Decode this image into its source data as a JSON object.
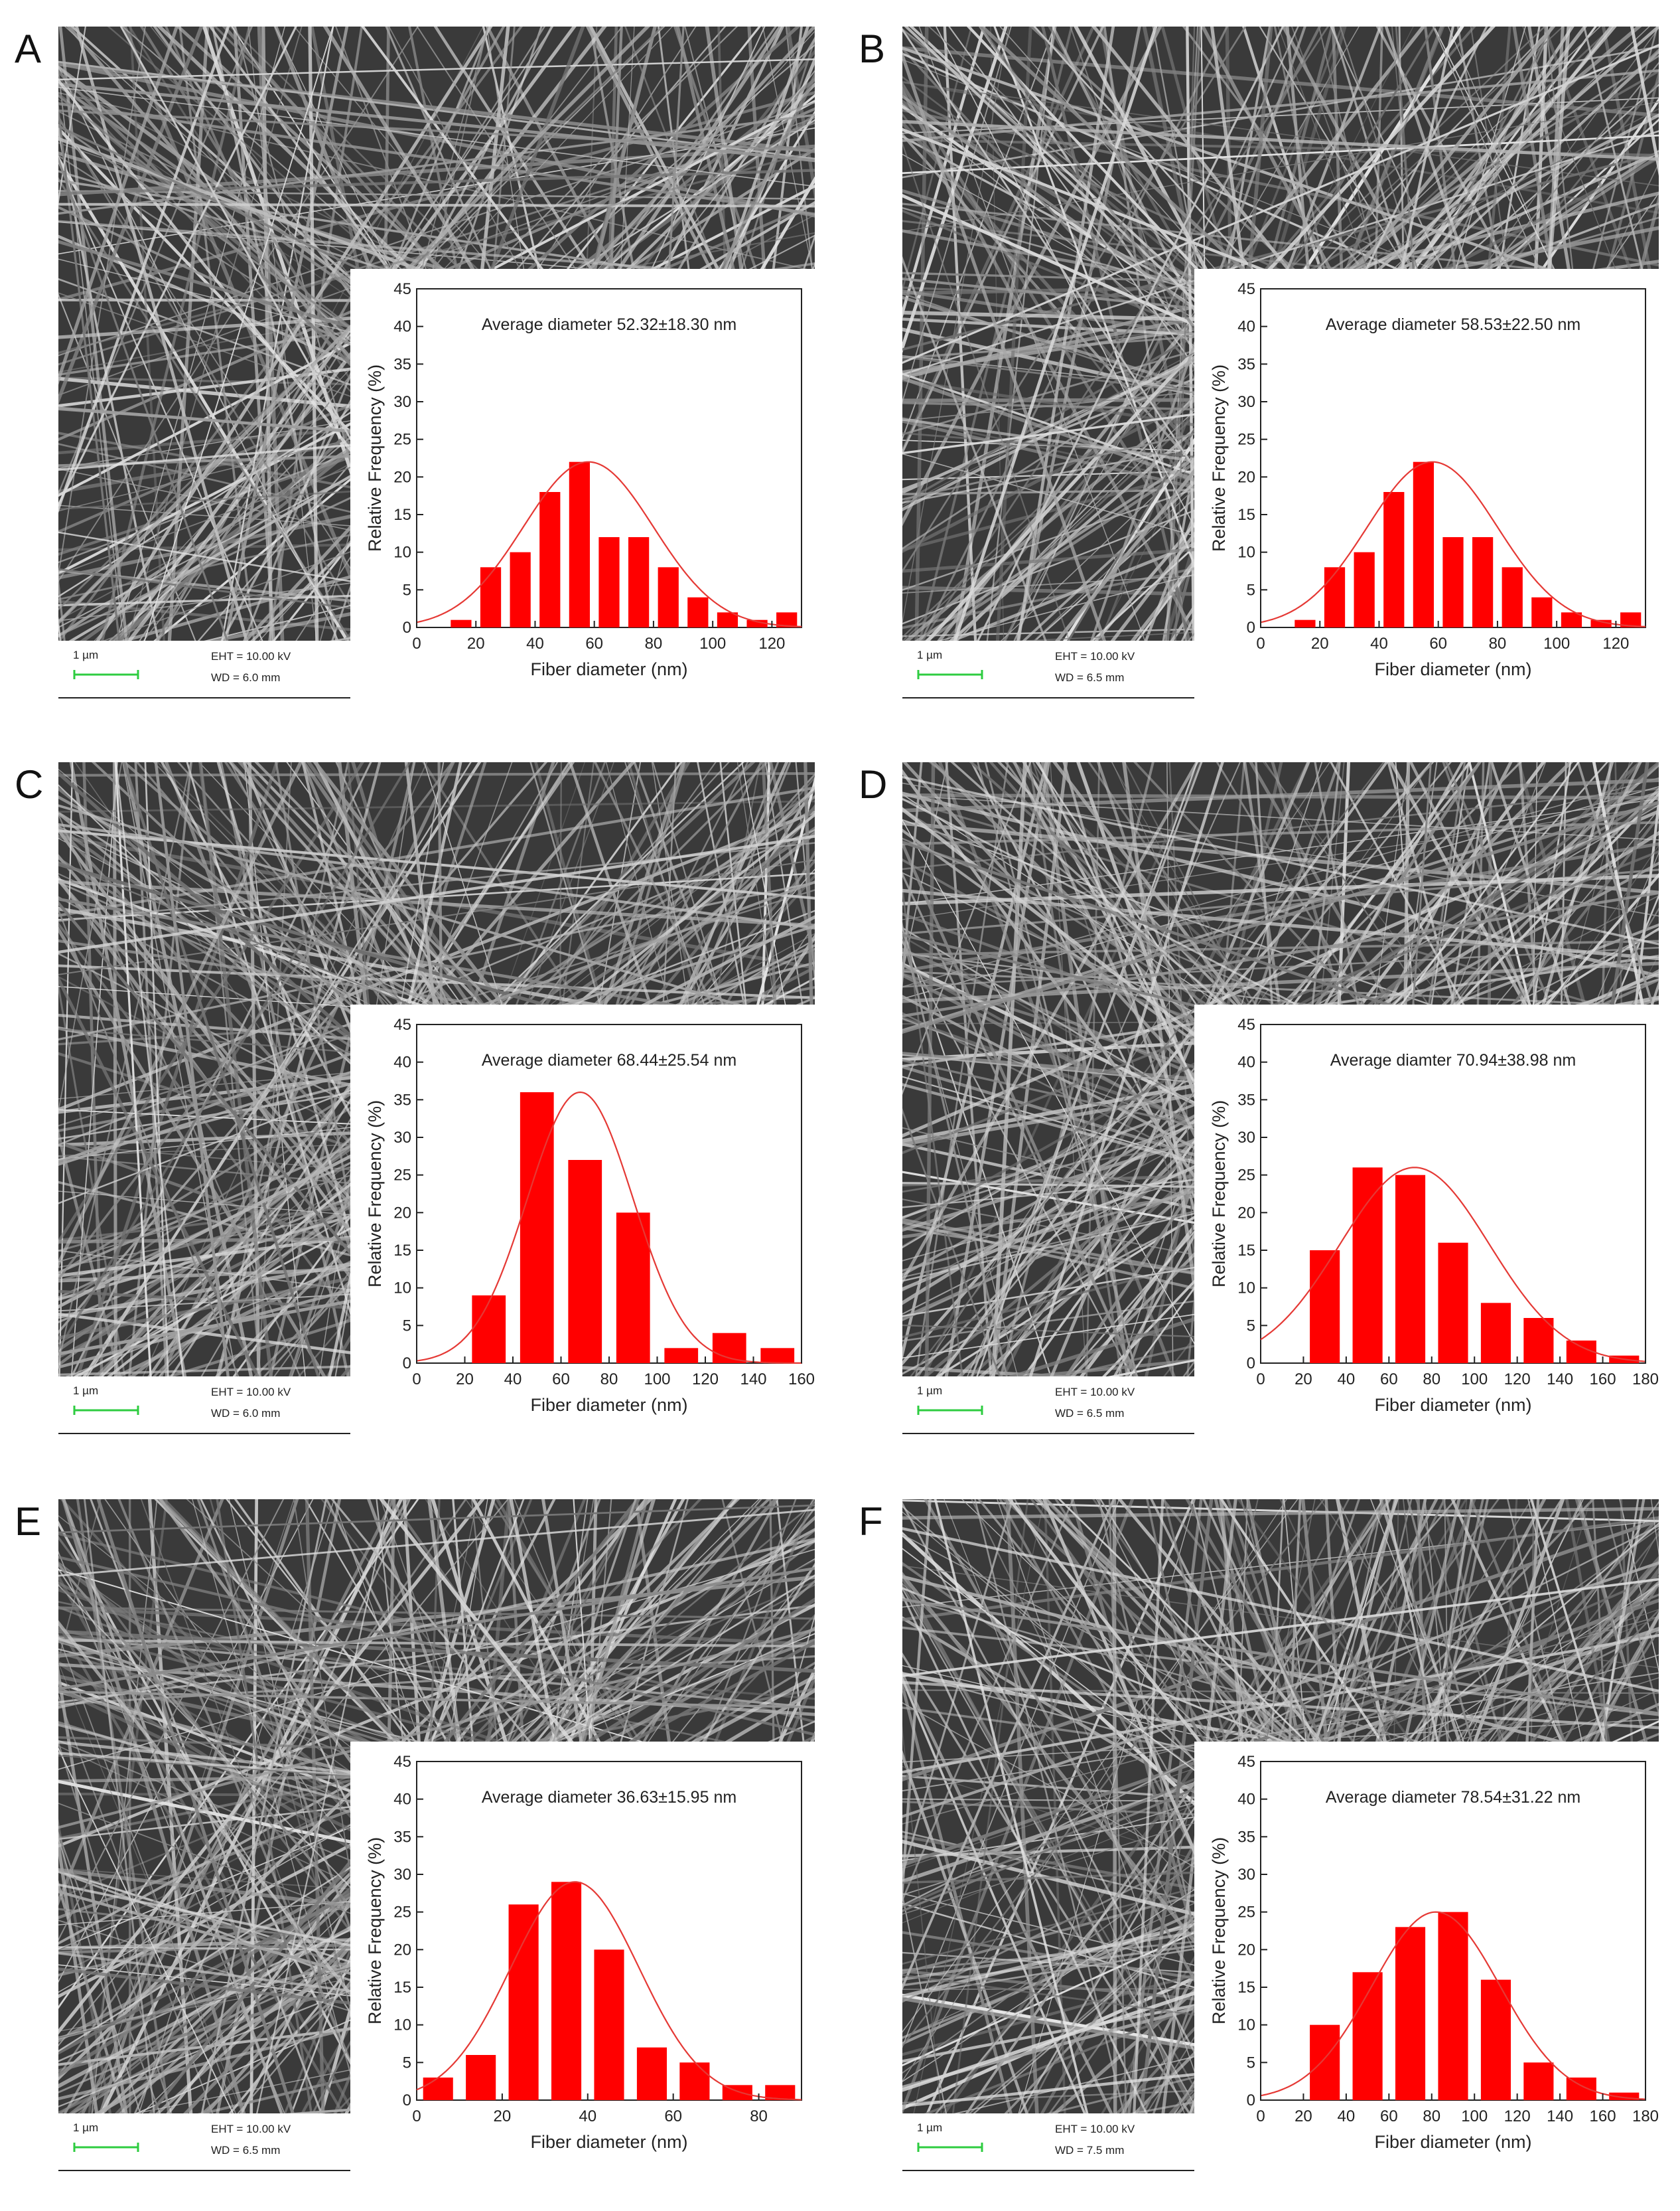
{
  "panels": [
    {
      "letter": "A",
      "scale": "1 µm",
      "eht": "EHT = 10.00 kV",
      "wd": "WD = 6.0 mm"
    },
    {
      "letter": "B",
      "scale": "1 µm",
      "eht": "EHT = 10.00 kV",
      "wd": "WD = 6.5 mm"
    },
    {
      "letter": "C",
      "scale": "1 µm",
      "eht": "EHT = 10.00 kV",
      "wd": "WD = 6.0 mm"
    },
    {
      "letter": "D",
      "scale": "1 µm",
      "eht": "EHT = 10.00 kV",
      "wd": "WD = 6.5 mm"
    },
    {
      "letter": "E",
      "scale": "1 µm",
      "eht": "EHT = 10.00 kV",
      "wd": "WD = 6.5 mm"
    },
    {
      "letter": "F",
      "scale": "1 µm",
      "eht": "EHT = 10.00 kV",
      "wd": "WD = 7.5 mm"
    }
  ],
  "colors": {
    "bar": "#ff0000",
    "fit": "#e53935",
    "scale_bar": "#2ecc40",
    "sem_bg": "#3a3a3a"
  },
  "chart_data": [
    {
      "type": "bar",
      "annotation": "Average diameter 52.32±18.30 nm",
      "xlabel": "Fiber diameter (nm)",
      "ylabel": "Relative Frequency (%)",
      "xlim": [
        0,
        130
      ],
      "ylim": [
        0,
        45
      ],
      "xticks": [
        0,
        20,
        40,
        60,
        80,
        100,
        120
      ],
      "yticks": [
        0,
        5,
        10,
        15,
        20,
        25,
        30,
        35,
        40,
        45
      ],
      "bin_width": 10,
      "x": [
        15,
        25,
        35,
        45,
        55,
        65,
        75,
        85,
        95,
        105,
        115,
        125
      ],
      "values": [
        1,
        8,
        10,
        18,
        22,
        12,
        12,
        8,
        4,
        2,
        1,
        2
      ],
      "fit": {
        "mean": 58,
        "sd": 22,
        "peak": 22
      }
    },
    {
      "type": "bar",
      "annotation": "Average diameter 58.53±22.50 nm",
      "xlabel": "Fiber diameter (nm)",
      "ylabel": "Relative Frequency (%)",
      "xlim": [
        0,
        130
      ],
      "ylim": [
        0,
        45
      ],
      "xticks": [
        0,
        20,
        40,
        60,
        80,
        100,
        120
      ],
      "yticks": [
        0,
        5,
        10,
        15,
        20,
        25,
        30,
        35,
        40,
        45
      ],
      "bin_width": 10,
      "x": [
        15,
        25,
        35,
        45,
        55,
        65,
        75,
        85,
        95,
        105,
        115,
        125
      ],
      "values": [
        1,
        8,
        10,
        18,
        22,
        12,
        12,
        8,
        4,
        2,
        1,
        2
      ],
      "fit": {
        "mean": 58,
        "sd": 22,
        "peak": 22
      }
    },
    {
      "type": "bar",
      "annotation": "Average diameter 68.44±25.54 nm",
      "xlabel": "Fiber diameter (nm)",
      "ylabel": "Relative Frequency (%)",
      "xlim": [
        0,
        160
      ],
      "ylim": [
        0,
        45
      ],
      "xticks": [
        0,
        20,
        40,
        60,
        80,
        100,
        120,
        140,
        160
      ],
      "yticks": [
        0,
        5,
        10,
        15,
        20,
        25,
        30,
        35,
        40,
        45
      ],
      "bin_width": 20,
      "x": [
        30,
        50,
        70,
        90,
        110,
        130,
        150
      ],
      "values": [
        9,
        36,
        27,
        20,
        2,
        4,
        2
      ],
      "fit": {
        "mean": 68,
        "sd": 22,
        "peak": 36
      }
    },
    {
      "type": "bar",
      "annotation": "Average diamter 70.94±38.98 nm",
      "xlabel": "Fiber diameter (nm)",
      "ylabel": "Relative Frequency (%)",
      "xlim": [
        0,
        180
      ],
      "ylim": [
        0,
        45
      ],
      "xticks": [
        0,
        20,
        40,
        60,
        80,
        100,
        120,
        140,
        160,
        180
      ],
      "yticks": [
        0,
        5,
        10,
        15,
        20,
        25,
        30,
        35,
        40,
        45
      ],
      "bin_width": 20,
      "x": [
        30,
        50,
        70,
        90,
        110,
        130,
        150,
        170
      ],
      "values": [
        15,
        26,
        25,
        16,
        8,
        6,
        3,
        1
      ],
      "fit": {
        "mean": 72,
        "sd": 35,
        "peak": 26
      }
    },
    {
      "type": "bar",
      "annotation": "Average diameter 36.63±15.95 nm",
      "xlabel": "Fiber diameter (nm)",
      "ylabel": "Relative Frequency (%)",
      "xlim": [
        0,
        90
      ],
      "ylim": [
        0,
        45
      ],
      "xticks": [
        0,
        20,
        40,
        60,
        80
      ],
      "yticks": [
        0,
        5,
        10,
        15,
        20,
        25,
        30,
        35,
        40,
        45
      ],
      "bin_width": 10,
      "x": [
        5,
        15,
        25,
        35,
        45,
        55,
        65,
        75,
        85
      ],
      "values": [
        3,
        6,
        26,
        29,
        20,
        7,
        5,
        2,
        2
      ],
      "fit": {
        "mean": 37,
        "sd": 15,
        "peak": 29
      }
    },
    {
      "type": "bar",
      "annotation": "Average diameter 78.54±31.22 nm",
      "xlabel": "Fiber diameter (nm)",
      "ylabel": "Relative Frequency (%)",
      "xlim": [
        0,
        180
      ],
      "ylim": [
        0,
        45
      ],
      "xticks": [
        0,
        20,
        40,
        60,
        80,
        100,
        120,
        140,
        160,
        180
      ],
      "yticks": [
        0,
        5,
        10,
        15,
        20,
        25,
        30,
        35,
        40,
        45
      ],
      "bin_width": 20,
      "x": [
        30,
        50,
        70,
        90,
        110,
        130,
        150,
        170
      ],
      "values": [
        10,
        17,
        23,
        25,
        16,
        5,
        3,
        1
      ],
      "fit": {
        "mean": 82,
        "sd": 30,
        "peak": 25
      }
    }
  ]
}
